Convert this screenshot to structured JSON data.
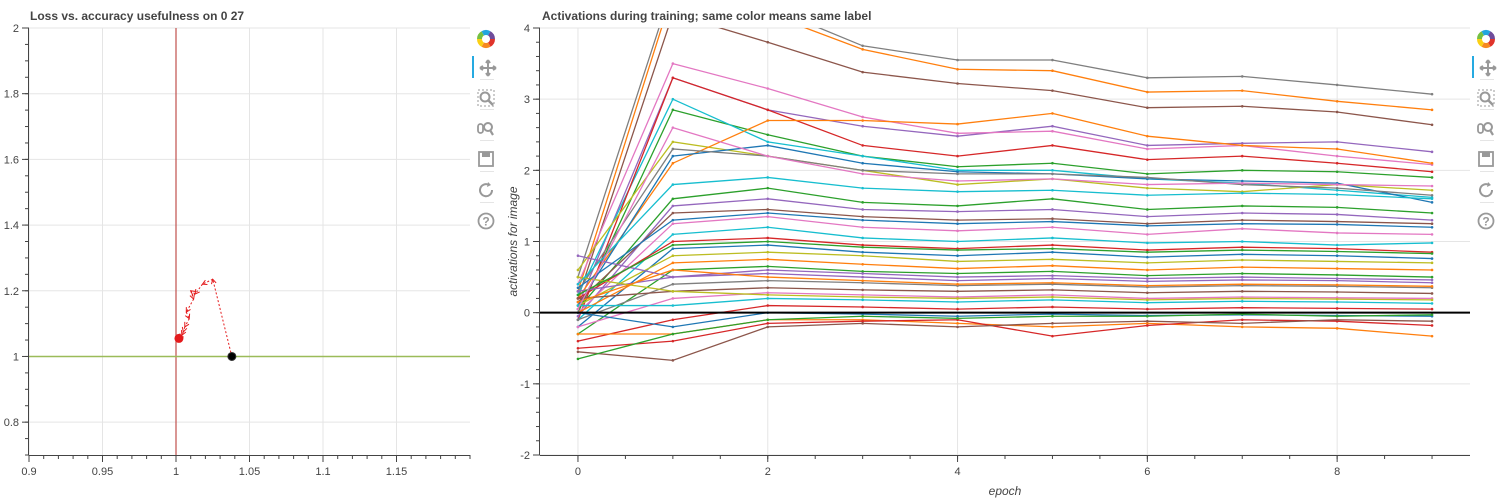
{
  "left_panel": {
    "title": "Loss vs. accuracy usefulness on 0 27"
  },
  "right_panel": {
    "title": "Activations during training; same color means same label"
  },
  "chart_data": [
    {
      "type": "scatter",
      "title": "Loss vs. accuracy usefulness on 0 27",
      "xlabel": "",
      "ylabel": "",
      "xlim": [
        0.9,
        1.2
      ],
      "ylim": [
        0.7,
        2.0
      ],
      "x_ticks": [
        "0.9",
        "0.95",
        "1",
        "1.05",
        "1.1",
        "1.15"
      ],
      "y_ticks": [
        "0.8",
        "1",
        "1.2",
        "1.4",
        "1.6",
        "1.8",
        "2"
      ],
      "grid": true,
      "reference_lines": [
        {
          "orientation": "vertical",
          "value": 1.0,
          "color": "#c0504d"
        },
        {
          "orientation": "horizontal",
          "value": 1.0,
          "color": "#9bbb59"
        }
      ],
      "trajectory": {
        "color": "#e41a1c",
        "style": "dotted-arrows",
        "points": [
          [
            1.038,
            1.0
          ],
          [
            1.025,
            1.235
          ],
          [
            1.018,
            1.22
          ],
          [
            1.013,
            1.19
          ],
          [
            1.01,
            1.2
          ],
          [
            1.012,
            1.175
          ],
          [
            1.007,
            1.135
          ],
          [
            1.009,
            1.115
          ],
          [
            1.006,
            1.09
          ],
          [
            1.005,
            1.075
          ],
          [
            1.004,
            1.065
          ],
          [
            1.002,
            1.055
          ]
        ]
      },
      "markers": [
        {
          "label": "start",
          "x": 1.038,
          "y": 1.0,
          "color": "#000000"
        },
        {
          "label": "end",
          "x": 1.002,
          "y": 1.055,
          "color": "#e41a1c"
        }
      ]
    },
    {
      "type": "line",
      "title": "Activations during training; same color means same label",
      "xlabel": "epoch",
      "ylabel": "activations for image",
      "xlim": [
        -0.4,
        9.4
      ],
      "ylim": [
        -2,
        4
      ],
      "x_ticks": [
        "0",
        "2",
        "4",
        "6",
        "8"
      ],
      "y_ticks": [
        "-2",
        "-1",
        "0",
        "1",
        "2",
        "3",
        "4"
      ],
      "grid": true,
      "zero_line": {
        "value": 0,
        "color": "#000000"
      },
      "epochs": [
        0,
        1,
        2,
        3,
        4,
        5,
        6,
        7,
        8,
        9
      ],
      "palette": [
        "#1f77b4",
        "#ff7f0e",
        "#2ca02c",
        "#d62728",
        "#9467bd",
        "#8c564b",
        "#e377c2",
        "#7f7f7f",
        "#bcbd22",
        "#17becf"
      ],
      "series": [
        {
          "color": "#7f7f7f",
          "values": [
            0.5,
            4.6,
            4.3,
            3.75,
            3.55,
            3.55,
            3.3,
            3.32,
            3.2,
            3.07
          ]
        },
        {
          "color": "#ff7f0e",
          "values": [
            0.3,
            4.5,
            4.2,
            3.7,
            3.42,
            3.4,
            3.1,
            3.12,
            2.97,
            2.85
          ]
        },
        {
          "color": "#8c564b",
          "values": [
            0.2,
            4.2,
            3.8,
            3.38,
            3.22,
            3.12,
            2.88,
            2.9,
            2.82,
            2.64
          ]
        },
        {
          "color": "#9467bd",
          "values": [
            0.1,
            3.3,
            2.85,
            2.62,
            2.48,
            2.62,
            2.35,
            2.38,
            2.4,
            2.26
          ]
        },
        {
          "color": "#e377c2",
          "values": [
            0.4,
            3.5,
            3.15,
            2.75,
            2.52,
            2.55,
            2.3,
            2.35,
            2.2,
            2.08
          ]
        },
        {
          "color": "#2ca02c",
          "values": [
            0.0,
            2.85,
            2.5,
            2.2,
            2.05,
            2.1,
            1.95,
            2.0,
            1.98,
            1.9
          ]
        },
        {
          "color": "#17becf",
          "values": [
            0.25,
            3.0,
            2.4,
            2.2,
            2.0,
            2.0,
            1.88,
            1.82,
            1.72,
            1.62
          ]
        },
        {
          "color": "#d62728",
          "values": [
            -0.1,
            3.3,
            2.85,
            2.35,
            2.2,
            2.35,
            2.15,
            2.2,
            2.1,
            1.98
          ]
        },
        {
          "color": "#bcbd22",
          "values": [
            0.6,
            2.4,
            2.2,
            2.0,
            1.8,
            1.88,
            1.75,
            1.7,
            1.8,
            1.72
          ]
        },
        {
          "color": "#ff7f0e",
          "values": [
            0.2,
            2.1,
            2.7,
            2.7,
            2.65,
            2.8,
            2.48,
            2.35,
            2.3,
            2.1
          ]
        },
        {
          "color": "#1f77b4",
          "values": [
            0.1,
            2.2,
            2.35,
            2.1,
            1.98,
            1.95,
            1.88,
            1.85,
            1.82,
            1.55
          ]
        },
        {
          "color": "#7f7f7f",
          "values": [
            0.3,
            2.3,
            2.2,
            2.0,
            1.95,
            1.95,
            1.9,
            1.8,
            1.75,
            1.65
          ]
        },
        {
          "color": "#2ca02c",
          "values": [
            0.05,
            1.6,
            1.75,
            1.55,
            1.5,
            1.6,
            1.45,
            1.5,
            1.48,
            1.4
          ]
        },
        {
          "color": "#9467bd",
          "values": [
            -0.05,
            1.5,
            1.6,
            1.45,
            1.42,
            1.45,
            1.35,
            1.4,
            1.38,
            1.3
          ]
        },
        {
          "color": "#8c564b",
          "values": [
            0.15,
            1.4,
            1.45,
            1.35,
            1.3,
            1.32,
            1.25,
            1.3,
            1.28,
            1.25
          ]
        },
        {
          "color": "#e377c2",
          "values": [
            0.0,
            1.25,
            1.35,
            1.2,
            1.15,
            1.2,
            1.1,
            1.18,
            1.12,
            1.1
          ]
        },
        {
          "color": "#17becf",
          "values": [
            -0.1,
            1.1,
            1.2,
            1.05,
            1.0,
            1.05,
            0.98,
            1.0,
            0.95,
            0.98
          ]
        },
        {
          "color": "#d62728",
          "values": [
            0.2,
            1.0,
            1.05,
            0.95,
            0.9,
            0.95,
            0.88,
            0.92,
            0.9,
            0.85
          ]
        },
        {
          "color": "#1f77b4",
          "values": [
            -0.2,
            0.9,
            0.95,
            0.85,
            0.8,
            0.85,
            0.78,
            0.82,
            0.8,
            0.76
          ]
        },
        {
          "color": "#bcbd22",
          "values": [
            0.1,
            0.8,
            0.85,
            0.8,
            0.72,
            0.75,
            0.7,
            0.74,
            0.72,
            0.7
          ]
        },
        {
          "color": "#ff7f0e",
          "values": [
            0.0,
            0.7,
            0.75,
            0.68,
            0.62,
            0.66,
            0.6,
            0.64,
            0.62,
            0.6
          ]
        },
        {
          "color": "#2ca02c",
          "values": [
            -0.3,
            0.6,
            0.65,
            0.58,
            0.55,
            0.58,
            0.52,
            0.55,
            0.53,
            0.5
          ]
        },
        {
          "color": "#9467bd",
          "values": [
            0.3,
            0.5,
            0.55,
            0.5,
            0.45,
            0.48,
            0.44,
            0.46,
            0.45,
            0.42
          ]
        },
        {
          "color": "#7f7f7f",
          "values": [
            -0.1,
            0.4,
            0.45,
            0.42,
            0.38,
            0.4,
            0.36,
            0.38,
            0.37,
            0.35
          ]
        },
        {
          "color": "#8c564b",
          "values": [
            0.2,
            0.3,
            0.35,
            0.32,
            0.3,
            0.32,
            0.28,
            0.3,
            0.29,
            0.27
          ]
        },
        {
          "color": "#e377c2",
          "values": [
            -0.2,
            0.2,
            0.28,
            0.25,
            0.22,
            0.25,
            0.2,
            0.22,
            0.21,
            0.2
          ]
        },
        {
          "color": "#17becf",
          "values": [
            0.1,
            0.1,
            0.2,
            0.18,
            0.15,
            0.18,
            0.14,
            0.16,
            0.15,
            0.13
          ]
        },
        {
          "color": "#d62728",
          "values": [
            -0.4,
            -0.1,
            0.1,
            0.08,
            0.05,
            0.08,
            0.05,
            0.07,
            0.06,
            0.05
          ]
        },
        {
          "color": "#1f77b4",
          "values": [
            0.0,
            -0.2,
            0.0,
            -0.02,
            -0.05,
            -0.02,
            -0.04,
            -0.03,
            -0.04,
            -0.05
          ]
        },
        {
          "color": "#ff7f0e",
          "values": [
            -0.3,
            -0.3,
            -0.1,
            -0.1,
            -0.15,
            -0.2,
            -0.15,
            -0.2,
            -0.22,
            -0.33
          ]
        },
        {
          "color": "#d62728",
          "values": [
            -0.5,
            -0.4,
            -0.15,
            -0.12,
            -0.1,
            -0.33,
            -0.18,
            -0.1,
            -0.12,
            -0.18
          ]
        },
        {
          "color": "#8c564b",
          "values": [
            -0.55,
            -0.67,
            -0.2,
            -0.15,
            -0.2,
            -0.15,
            -0.12,
            -0.15,
            -0.1,
            -0.12
          ]
        },
        {
          "color": "#2ca02c",
          "values": [
            -0.65,
            -0.3,
            -0.1,
            -0.05,
            -0.08,
            -0.05,
            -0.05,
            -0.02,
            -0.05,
            -0.03
          ]
        },
        {
          "color": "#9467bd",
          "values": [
            0.8,
            0.5,
            0.6,
            0.55,
            0.5,
            0.52,
            0.48,
            0.5,
            0.48,
            0.46
          ]
        },
        {
          "color": "#bcbd22",
          "values": [
            0.5,
            0.3,
            0.25,
            0.22,
            0.2,
            0.22,
            0.18,
            0.2,
            0.19,
            0.18
          ]
        },
        {
          "color": "#17becf",
          "values": [
            0.4,
            1.8,
            1.9,
            1.75,
            1.7,
            1.72,
            1.65,
            1.68,
            1.66,
            1.6
          ]
        },
        {
          "color": "#1f77b4",
          "values": [
            0.35,
            1.3,
            1.4,
            1.3,
            1.25,
            1.28,
            1.22,
            1.25,
            1.24,
            1.2
          ]
        },
        {
          "color": "#ff7f0e",
          "values": [
            0.15,
            0.6,
            0.5,
            0.45,
            0.4,
            0.42,
            0.38,
            0.4,
            0.39,
            0.37
          ]
        },
        {
          "color": "#2ca02c",
          "values": [
            0.25,
            0.95,
            1.0,
            0.92,
            0.88,
            0.9,
            0.85,
            0.88,
            0.86,
            0.83
          ]
        },
        {
          "color": "#e377c2",
          "values": [
            0.05,
            2.6,
            2.2,
            1.95,
            1.85,
            1.88,
            1.8,
            1.82,
            1.8,
            1.78
          ]
        }
      ]
    }
  ]
}
